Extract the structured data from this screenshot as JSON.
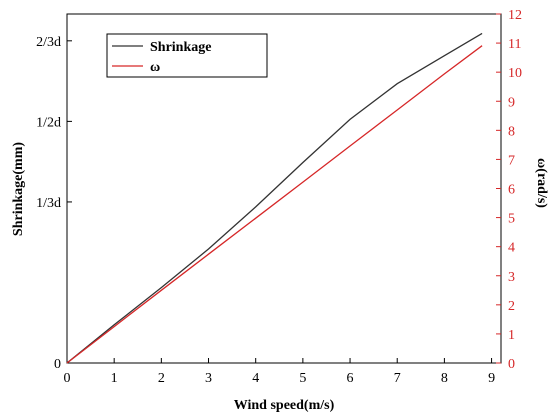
{
  "chart_data": {
    "type": "line",
    "xlabel": "Wind speed(m/s)",
    "ylabel_left": "Shrinkage(mm)",
    "ylabel_right": "ω(rad/s)",
    "xlim": [
      0,
      9.2
    ],
    "ylim_left": [
      0,
      0.7222
    ],
    "ylim_right": [
      0,
      12
    ],
    "x_ticks": [
      0,
      1,
      2,
      3,
      4,
      5,
      6,
      7,
      8,
      9
    ],
    "y_left_ticks": [
      {
        "value": 0,
        "label": "0"
      },
      {
        "value": 0.3333,
        "label": "1/3d"
      },
      {
        "value": 0.5,
        "label": "1/2d"
      },
      {
        "value": 0.6667,
        "label": "2/3d"
      }
    ],
    "y_right_ticks": [
      0,
      1,
      2,
      3,
      4,
      5,
      6,
      7,
      8,
      9,
      10,
      11,
      12
    ],
    "legend_position": "top-left",
    "series": [
      {
        "name": "Shrinkage",
        "axis": "left",
        "color": "#333333",
        "x": [
          0,
          1,
          2,
          3,
          4,
          5,
          6,
          7,
          8,
          8.8
        ],
        "y": [
          0,
          0.079,
          0.156,
          0.236,
          0.323,
          0.415,
          0.504,
          0.578,
          0.636,
          0.682
        ]
      },
      {
        "name": "ω",
        "axis": "right",
        "color": "#d62728",
        "x": [
          0,
          1,
          2,
          3,
          4,
          5,
          6,
          7,
          8,
          8.8
        ],
        "y": [
          0,
          1.25,
          2.5,
          3.74,
          4.98,
          6.22,
          7.46,
          8.7,
          9.94,
          10.91
        ]
      }
    ]
  }
}
